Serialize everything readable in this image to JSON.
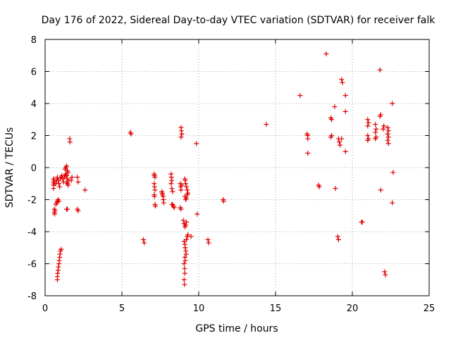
{
  "chart_data": {
    "type": "scatter",
    "title": "Day 176 of 2022, Sidereal Day-to-day VTEC variation (SDTVAR) for receiver falk",
    "xlabel": "GPS time / hours",
    "ylabel": "SDTVAR / TECUs",
    "xlim": [
      0,
      25
    ],
    "ylim": [
      -8,
      8
    ],
    "xticks": [
      0,
      5,
      10,
      15,
      20,
      25
    ],
    "yticks": [
      -8,
      -6,
      -4,
      -2,
      0,
      2,
      4,
      6,
      8
    ],
    "grid": true,
    "marker": "+",
    "color": "#e00000",
    "series": [
      {
        "name": "falk",
        "points": [
          [
            0.55,
            -0.7
          ],
          [
            0.55,
            -0.9
          ],
          [
            0.55,
            -1.1
          ],
          [
            0.55,
            -1.3
          ],
          [
            0.6,
            -1.0
          ],
          [
            0.6,
            -0.8
          ],
          [
            0.6,
            -2.6
          ],
          [
            0.6,
            -2.8
          ],
          [
            0.62,
            -2.9
          ],
          [
            0.65,
            -2.7
          ],
          [
            0.7,
            -2.3
          ],
          [
            0.75,
            -2.2
          ],
          [
            0.8,
            -2.1
          ],
          [
            0.85,
            -2.0
          ],
          [
            0.9,
            -2.1
          ],
          [
            0.7,
            -1.0
          ],
          [
            0.75,
            -0.8
          ],
          [
            0.8,
            -0.6
          ],
          [
            0.85,
            -0.8
          ],
          [
            0.9,
            -1.0
          ],
          [
            0.95,
            -1.2
          ],
          [
            0.8,
            -7.0
          ],
          [
            0.8,
            -6.8
          ],
          [
            0.82,
            -6.6
          ],
          [
            0.85,
            -6.4
          ],
          [
            0.87,
            -6.2
          ],
          [
            0.9,
            -6.0
          ],
          [
            0.92,
            -5.8
          ],
          [
            0.95,
            -5.6
          ],
          [
            0.97,
            -5.4
          ],
          [
            1.0,
            -5.2
          ],
          [
            1.05,
            -5.1
          ],
          [
            1.0,
            -0.7
          ],
          [
            1.05,
            -0.6
          ],
          [
            1.1,
            -0.5
          ],
          [
            1.15,
            -0.7
          ],
          [
            1.2,
            -0.9
          ],
          [
            1.25,
            -0.6
          ],
          [
            1.3,
            -0.5
          ],
          [
            1.35,
            -0.4
          ],
          [
            1.4,
            -0.5
          ],
          [
            1.45,
            -0.7
          ],
          [
            1.3,
            -0.1
          ],
          [
            1.35,
            0.0
          ],
          [
            1.4,
            0.1
          ],
          [
            1.45,
            -0.2
          ],
          [
            1.5,
            -0.3
          ],
          [
            1.4,
            -0.9
          ],
          [
            1.45,
            -1.0
          ],
          [
            1.5,
            -1.1
          ],
          [
            1.55,
            -0.8
          ],
          [
            1.4,
            -2.6
          ],
          [
            1.45,
            -2.6
          ],
          [
            1.6,
            1.8
          ],
          [
            1.62,
            1.6
          ],
          [
            1.7,
            -0.8
          ],
          [
            1.75,
            -0.6
          ],
          [
            2.1,
            -0.6
          ],
          [
            2.15,
            -0.9
          ],
          [
            2.1,
            -2.6
          ],
          [
            2.15,
            -2.7
          ],
          [
            2.6,
            -1.4
          ],
          [
            5.55,
            2.2
          ],
          [
            5.6,
            2.1
          ],
          [
            6.4,
            -4.5
          ],
          [
            6.45,
            -4.7
          ],
          [
            7.1,
            -0.4
          ],
          [
            7.12,
            -0.5
          ],
          [
            7.15,
            -0.6
          ],
          [
            7.1,
            -1.0
          ],
          [
            7.12,
            -1.2
          ],
          [
            7.15,
            -1.4
          ],
          [
            7.1,
            -1.7
          ],
          [
            7.12,
            -1.8
          ],
          [
            7.15,
            -2.3
          ],
          [
            7.18,
            -2.4
          ],
          [
            7.6,
            -1.5
          ],
          [
            7.62,
            -1.6
          ],
          [
            7.65,
            -1.7
          ],
          [
            7.7,
            -2.0
          ],
          [
            7.72,
            -2.2
          ],
          [
            7.68,
            -1.8
          ],
          [
            8.2,
            -0.4
          ],
          [
            8.22,
            -0.6
          ],
          [
            8.25,
            -0.8
          ],
          [
            8.2,
            -1.0
          ],
          [
            8.25,
            -1.3
          ],
          [
            8.3,
            -1.5
          ],
          [
            8.3,
            -2.3
          ],
          [
            8.35,
            -2.4
          ],
          [
            8.4,
            -2.5
          ],
          [
            8.25,
            -2.3
          ],
          [
            8.85,
            2.5
          ],
          [
            8.87,
            2.3
          ],
          [
            8.9,
            2.1
          ],
          [
            8.85,
            1.9
          ],
          [
            8.8,
            -1.0
          ],
          [
            8.82,
            -1.2
          ],
          [
            8.85,
            -1.4
          ],
          [
            8.9,
            -1.1
          ],
          [
            8.8,
            -2.5
          ],
          [
            8.85,
            -2.6
          ],
          [
            9.0,
            -3.3
          ],
          [
            9.05,
            -3.5
          ],
          [
            9.1,
            -3.7
          ],
          [
            9.15,
            -3.6
          ],
          [
            9.2,
            -3.4
          ],
          [
            9.05,
            -4.6
          ],
          [
            9.1,
            -4.8
          ],
          [
            9.12,
            -5.0
          ],
          [
            9.15,
            -5.2
          ],
          [
            9.18,
            -5.4
          ],
          [
            9.1,
            -5.6
          ],
          [
            9.12,
            -5.8
          ],
          [
            9.05,
            -6.0
          ],
          [
            9.08,
            -6.3
          ],
          [
            9.1,
            -6.6
          ],
          [
            9.05,
            -7.0
          ],
          [
            9.08,
            -7.3
          ],
          [
            9.2,
            -4.5
          ],
          [
            9.25,
            -4.3
          ],
          [
            9.3,
            -4.2
          ],
          [
            9.1,
            -0.7
          ],
          [
            9.12,
            -0.8
          ],
          [
            9.15,
            -1.0
          ],
          [
            9.2,
            -1.2
          ],
          [
            9.25,
            -1.4
          ],
          [
            9.3,
            -1.6
          ],
          [
            9.1,
            -1.8
          ],
          [
            9.15,
            -2.0
          ],
          [
            9.2,
            -1.9
          ],
          [
            9.25,
            -1.7
          ],
          [
            9.5,
            -4.3
          ],
          [
            9.85,
            1.5
          ],
          [
            9.9,
            -2.9
          ],
          [
            10.6,
            -4.5
          ],
          [
            10.65,
            -4.7
          ],
          [
            11.6,
            -2.0
          ],
          [
            11.62,
            -2.1
          ],
          [
            14.4,
            2.7
          ],
          [
            16.6,
            4.5
          ],
          [
            17.05,
            2.1
          ],
          [
            17.1,
            1.8
          ],
          [
            17.1,
            2.0
          ],
          [
            17.1,
            0.9
          ],
          [
            17.8,
            -1.1
          ],
          [
            17.85,
            -1.2
          ],
          [
            18.3,
            7.1
          ],
          [
            18.6,
            3.1
          ],
          [
            18.65,
            3.0
          ],
          [
            18.6,
            1.9
          ],
          [
            18.65,
            2.0
          ],
          [
            18.85,
            3.8
          ],
          [
            18.9,
            -1.3
          ],
          [
            19.05,
            -4.3
          ],
          [
            19.1,
            -4.5
          ],
          [
            19.1,
            1.8
          ],
          [
            19.2,
            1.4
          ],
          [
            19.15,
            1.6
          ],
          [
            19.3,
            5.5
          ],
          [
            19.35,
            5.3
          ],
          [
            19.3,
            1.8
          ],
          [
            19.55,
            4.5
          ],
          [
            19.55,
            3.5
          ],
          [
            19.55,
            1.0
          ],
          [
            20.6,
            -3.4
          ],
          [
            20.65,
            -3.4
          ],
          [
            21.0,
            3.0
          ],
          [
            21.05,
            2.8
          ],
          [
            21.0,
            2.6
          ],
          [
            21.0,
            2.0
          ],
          [
            21.05,
            1.8
          ],
          [
            21.0,
            1.7
          ],
          [
            21.5,
            2.7
          ],
          [
            21.55,
            2.4
          ],
          [
            21.5,
            2.2
          ],
          [
            21.55,
            1.9
          ],
          [
            21.5,
            1.8
          ],
          [
            21.8,
            6.1
          ],
          [
            21.85,
            3.3
          ],
          [
            21.8,
            3.2
          ],
          [
            21.85,
            -1.4
          ],
          [
            22.0,
            2.4
          ],
          [
            22.05,
            2.6
          ],
          [
            22.1,
            -6.5
          ],
          [
            22.15,
            -6.7
          ],
          [
            22.3,
            2.5
          ],
          [
            22.35,
            2.3
          ],
          [
            22.3,
            2.1
          ],
          [
            22.35,
            1.9
          ],
          [
            22.3,
            1.7
          ],
          [
            22.35,
            1.5
          ],
          [
            22.6,
            4.0
          ],
          [
            22.65,
            -0.3
          ],
          [
            22.6,
            -2.2
          ]
        ]
      }
    ]
  }
}
